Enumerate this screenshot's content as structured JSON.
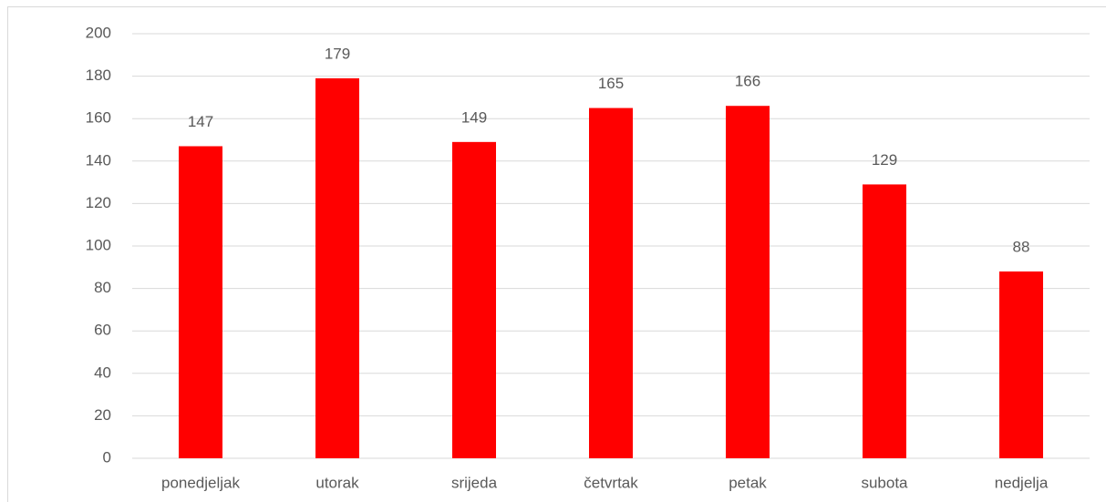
{
  "chart_data": {
    "type": "bar",
    "categories": [
      "ponedjeljak",
      "utorak",
      "srijeda",
      "četvrtak",
      "petak",
      "subota",
      "nedjelja"
    ],
    "values": [
      147,
      179,
      149,
      165,
      166,
      129,
      88
    ],
    "color": "#ff0000",
    "ylim": [
      0,
      200
    ],
    "yticks": [
      0,
      20,
      40,
      60,
      80,
      100,
      120,
      140,
      160,
      180,
      200
    ],
    "grid": true
  }
}
